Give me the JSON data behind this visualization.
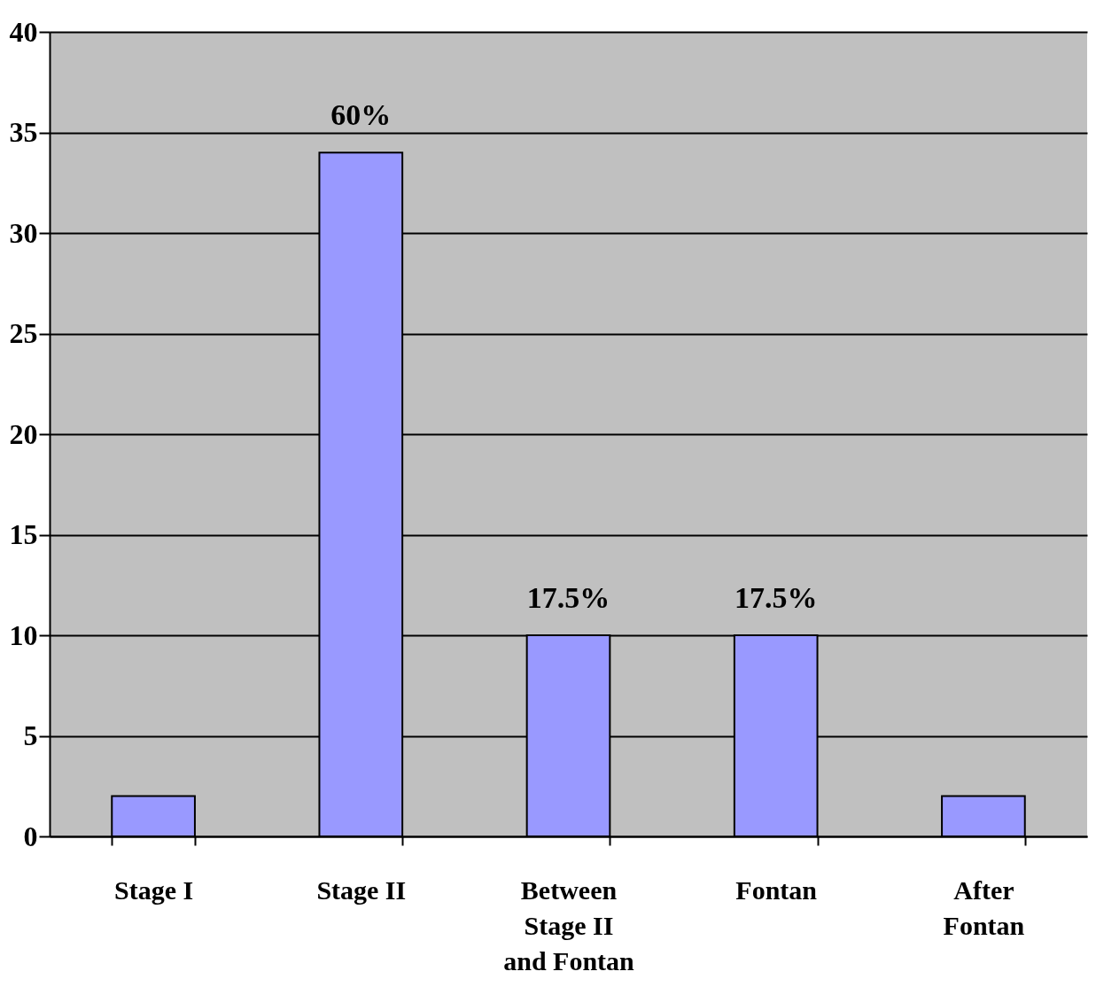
{
  "chart_data": {
    "type": "bar",
    "categories": [
      "Stage I",
      "Stage II",
      "Between Stage II and Fontan",
      "Fontan",
      "After Fontan"
    ],
    "values": [
      2,
      34,
      10,
      10,
      2
    ],
    "annotations": [
      {
        "text": "60%",
        "x": "Stage II",
        "y": 34
      },
      {
        "text": "17.5%",
        "x": "Between Stage II and Fontan",
        "y": 10
      },
      {
        "text": "17.5%",
        "x": "Fontan",
        "y": 10
      }
    ],
    "color": "#9999ff",
    "ylim": [
      0,
      40
    ],
    "yticks": [
      0,
      5,
      10,
      15,
      20,
      25,
      30,
      35,
      40
    ],
    "grid": "y"
  }
}
